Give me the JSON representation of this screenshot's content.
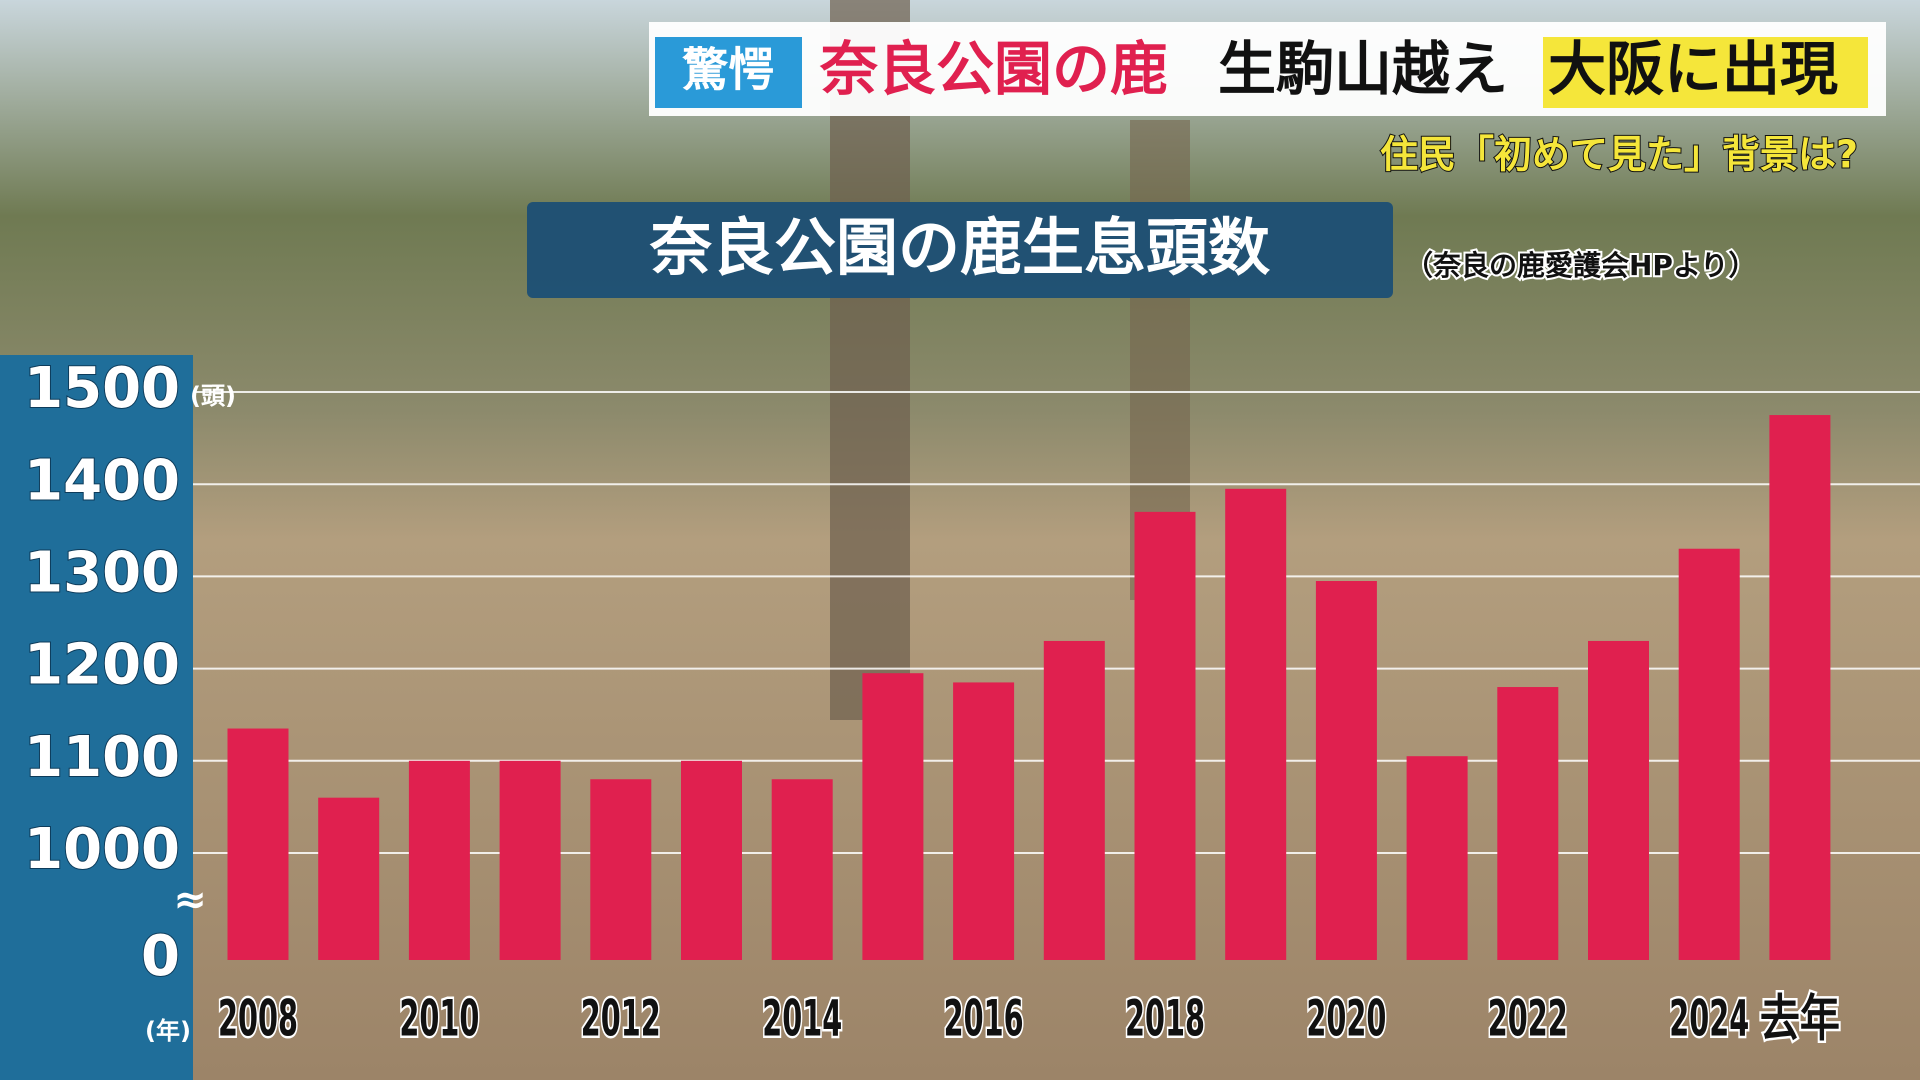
{
  "chart_data": {
    "type": "bar",
    "badge": "驚愕",
    "headline": [
      "奈良公園の鹿",
      "生駒山越え",
      "大阪に出現"
    ],
    "subheadline": "住民「初めて見た」背景は?",
    "title": "奈良公園の鹿生息頭数",
    "subtitle": "（奈良の鹿愛護会HPより）",
    "y_unit": "(頭)",
    "x_unit": "(年)",
    "break_symbol": "≈",
    "categories": [
      "2008",
      null,
      "2010",
      null,
      "2012",
      null,
      "2014",
      null,
      "2016",
      null,
      "2018",
      null,
      "2020",
      null,
      "2022",
      null,
      "2024",
      "去年"
    ],
    "values": [
      1135,
      1060,
      1100,
      1100,
      1080,
      1100,
      1080,
      1195,
      1185,
      1230,
      1370,
      1395,
      1295,
      1105,
      1180,
      1230,
      1330,
      1475
    ],
    "color": "#e0204f",
    "ylim": [
      0,
      1500
    ],
    "axis_break": [
      0,
      1000
    ],
    "yticks": [
      0,
      1000,
      1100,
      1200,
      1300,
      1400,
      1500
    ],
    "grid": true
  }
}
